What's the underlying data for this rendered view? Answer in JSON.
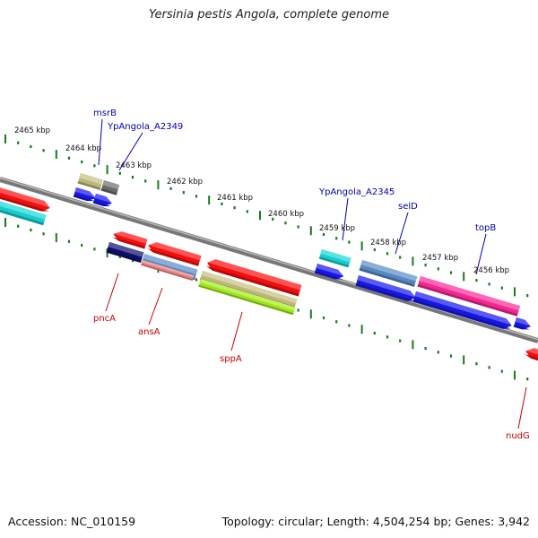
{
  "title": "Yersinia pestis Angola, complete genome",
  "accession": "Accession: NC_010159",
  "topology": "Topology: circular; Length: 4,504,254 bp; Genes: 3,942",
  "kbp_labels": [
    "2465 kbp",
    "2464 kbp",
    "2463 kbp",
    "2462 kbp",
    "2461 kbp",
    "2460 kbp",
    "2459 kbp",
    "2458 kbp",
    "2457 kbp",
    "2456 kbp"
  ],
  "gene_labels_top": [
    "msrB",
    "YpAngola_A2349",
    "YpAngola_A2345",
    "selD",
    "topB"
  ],
  "gene_labels_bottom": [
    "pncA",
    "ansA",
    "sppA",
    "nudG"
  ],
  "colors": {
    "forward_label": "#0000b0",
    "reverse_label": "#cc0000",
    "tick": "#1a7a1a",
    "backbone": "#888888",
    "red": "#ff1010",
    "cyan": "#18d8d8",
    "blue": "#1818f0",
    "navy": "#101070",
    "steel": "#5a8ec8",
    "salmon": "#f08080",
    "khaki": "#c8c080",
    "gray": "#707070",
    "pink": "#ff2a9a",
    "lime": "#a8f020"
  }
}
